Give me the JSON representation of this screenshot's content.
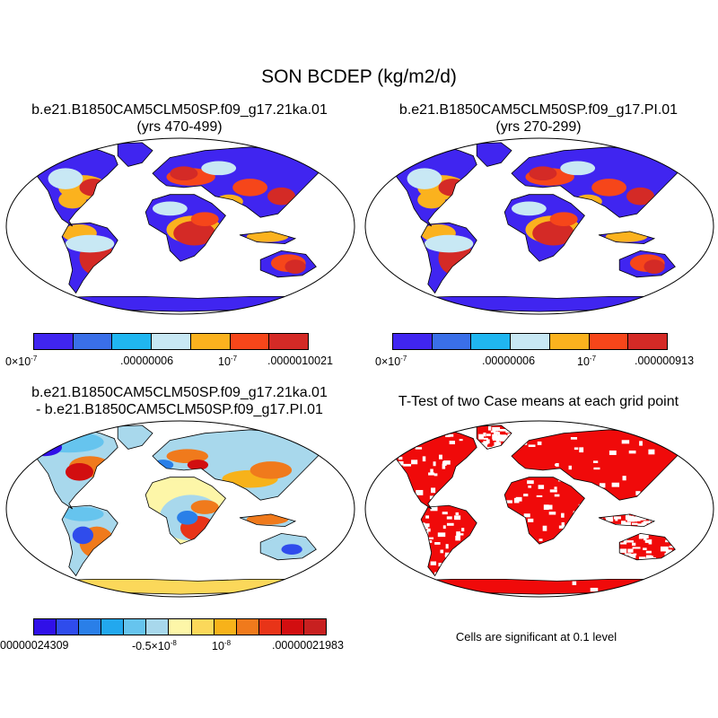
{
  "title": "SON BCDEP (kg/m2/d)",
  "colors": {
    "seq": [
      "#4025f0",
      "#3a6fe8",
      "#20b6f0",
      "#c8e8f4",
      "#fbb21e",
      "#f6461a",
      "#d42a26"
    ],
    "diff": [
      "#3010e8",
      "#2f4cec",
      "#2a7fe8",
      "#22a8ee",
      "#66c4ee",
      "#a8d8ec",
      "#fdf6a8",
      "#fbd85a",
      "#f7b21a",
      "#f07a1c",
      "#e83418",
      "#d20e10",
      "#c82020"
    ],
    "ocean": "#ffffff",
    "sig": "#f00a0a"
  },
  "panels": [
    {
      "id": "case",
      "title_line1": "b.e21.B1850CAM5CLM50SP.f09_g17.21ka.01",
      "title_line2": "(yrs 470-499)",
      "colorbar": {
        "labels": [
          {
            "text": "0×10",
            "sup": "-7"
          },
          {
            "text": ".00000006",
            "sup": ""
          },
          {
            "text": "10",
            "sup": "-7"
          },
          {
            "text": ".0000010021",
            "sup": ""
          }
        ]
      }
    },
    {
      "id": "ref",
      "title_line1": "b.e21.B1850CAM5CLM50SP.f09_g17.PI.01",
      "title_line2": "(yrs 270-299)",
      "colorbar": {
        "labels": [
          {
            "text": "0×10",
            "sup": "-7"
          },
          {
            "text": ".00000006",
            "sup": ""
          },
          {
            "text": "10",
            "sup": "-7"
          },
          {
            "text": ".000000913",
            "sup": ""
          }
        ]
      }
    },
    {
      "id": "diff",
      "title_line1": "b.e21.B1850CAM5CLM50SP.f09_g17.21ka.01",
      "title_line2": "- b.e21.B1850CAM5CLM50SP.f09_g17.PI.01",
      "colorbar": {
        "labels": [
          {
            "text": "00000024309",
            "sup": ""
          },
          {
            "text": "-0.5×10",
            "sup": "-8"
          },
          {
            "text": "10",
            "sup": "-8"
          },
          {
            "text": ".00000021983",
            "sup": ""
          }
        ]
      }
    },
    {
      "id": "ttest",
      "title_line1": "T-Test of two Case means at each grid point",
      "note": "Cells are significant at 0.1 level"
    }
  ]
}
